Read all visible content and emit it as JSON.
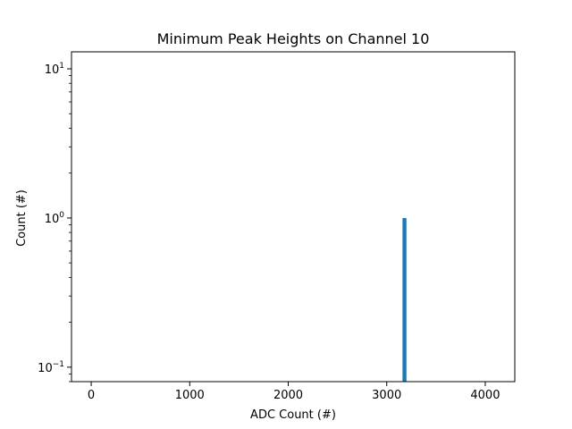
{
  "chart_data": {
    "type": "bar",
    "title": "Minimum Peak Heights on Channel 10",
    "xlabel": "ADC Count (#)",
    "ylabel": "Count (#)",
    "xlim": [
      -200,
      4300
    ],
    "ylim": [
      0.08,
      13
    ],
    "yscale": "log",
    "grid": false,
    "bar_color": "#1f77b4",
    "bins": [
      {
        "x_start": 3160,
        "x_end": 3200,
        "count": 1
      }
    ],
    "x_ticks": [
      {
        "value": 0,
        "label": "0"
      },
      {
        "value": 1000,
        "label": "1000"
      },
      {
        "value": 2000,
        "label": "2000"
      },
      {
        "value": 3000,
        "label": "3000"
      },
      {
        "value": 4000,
        "label": "4000"
      }
    ],
    "y_ticks": [
      {
        "value": 0.1,
        "base": "10",
        "exp": "−1"
      },
      {
        "value": 1,
        "base": "10",
        "exp": "0"
      },
      {
        "value": 10,
        "base": "10",
        "exp": "1"
      }
    ]
  }
}
